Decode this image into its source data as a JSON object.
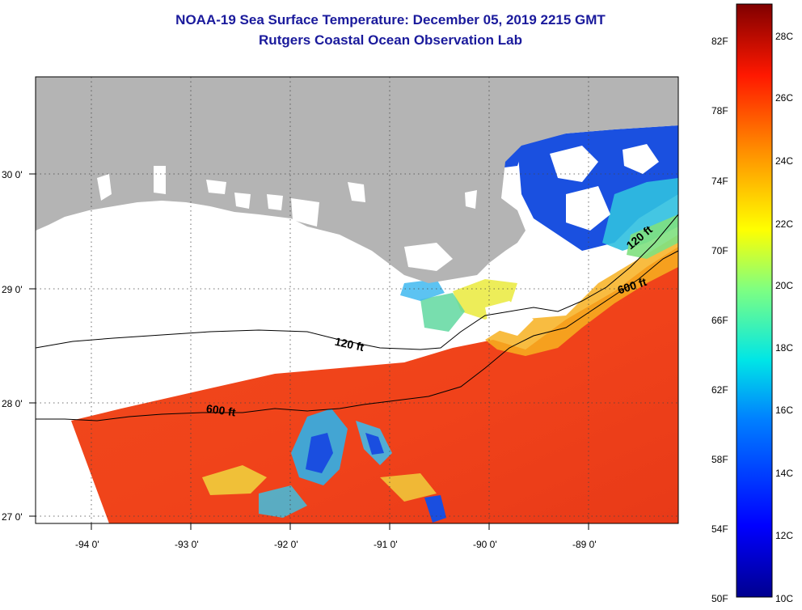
{
  "title": "NOAA-19 Sea Surface Temperature:  December 05, 2019 2215 GMT",
  "subtitle": "Rutgers Coastal Ocean Observation Lab",
  "map": {
    "lat_labels": [
      "30 0'",
      "29 0'",
      "28 0'",
      "27 0'"
    ],
    "lon_labels": [
      "-94 0'",
      "-93 0'",
      "-92 0'",
      "-91 0'",
      "-90 0'",
      "-89 0'"
    ],
    "contours": [
      "120 ft",
      "600 ft",
      "600 ft",
      "120 ft"
    ],
    "colors": {
      "land": "#b4b4b4",
      "cloud": "#ffffff",
      "warm": "#f0421c",
      "cool": "#1a4ee0"
    }
  },
  "colorbar": {
    "fahrenheit_labels": [
      "82F",
      "78F",
      "74F",
      "70F",
      "66F",
      "62F",
      "58F",
      "54F",
      "50F"
    ],
    "celsius_labels": [
      "28C",
      "26C",
      "24C",
      "22C",
      "20C",
      "18C",
      "16C",
      "14C",
      "12C",
      "10C"
    ]
  }
}
